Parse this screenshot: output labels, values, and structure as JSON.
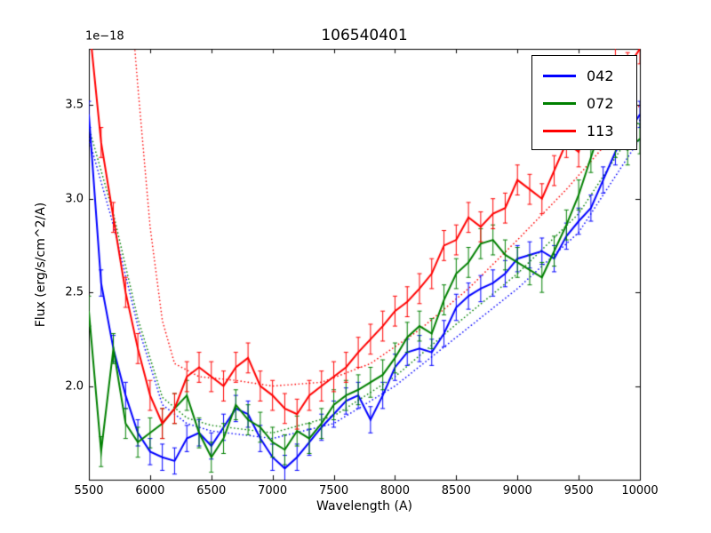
{
  "chart_data": {
    "type": "line",
    "title": "106540401",
    "xlabel": "Wavelength (A)",
    "ylabel": "Flux (erg/s/cm^2/A)",
    "offset_label": "1e−18",
    "xlim": [
      5500,
      10000
    ],
    "ylim": [
      1.5,
      3.8
    ],
    "xticks": [
      5500,
      6000,
      6500,
      7000,
      7500,
      8000,
      8500,
      9000,
      9500,
      10000
    ],
    "yticks": [
      2.0,
      2.5,
      3.0,
      3.5
    ],
    "grid": false,
    "legend_position": "upper right",
    "x": [
      5500,
      5600,
      5700,
      5800,
      5900,
      6000,
      6100,
      6200,
      6300,
      6400,
      6500,
      6600,
      6700,
      6800,
      6900,
      7000,
      7100,
      7200,
      7300,
      7400,
      7500,
      7600,
      7700,
      7800,
      7900,
      8000,
      8100,
      8200,
      8300,
      8400,
      8500,
      8600,
      8700,
      8800,
      8900,
      9000,
      9100,
      9200,
      9300,
      9400,
      9500,
      9600,
      9700,
      9800,
      9900,
      10000
    ],
    "series": [
      {
        "name": "042",
        "color": "#0000ff",
        "err": 0.07,
        "y": [
          3.45,
          2.55,
          2.2,
          1.95,
          1.75,
          1.65,
          1.62,
          1.6,
          1.72,
          1.75,
          1.68,
          1.78,
          1.88,
          1.85,
          1.72,
          1.62,
          1.56,
          1.62,
          1.7,
          1.78,
          1.85,
          1.92,
          1.95,
          1.82,
          1.95,
          2.1,
          2.18,
          2.2,
          2.18,
          2.28,
          2.42,
          2.48,
          2.52,
          2.55,
          2.6,
          2.68,
          2.7,
          2.72,
          2.68,
          2.8,
          2.88,
          2.95,
          3.1,
          3.25,
          3.35,
          3.45
        ]
      },
      {
        "name": "072",
        "color": "#008000",
        "err": 0.08,
        "y": [
          2.4,
          1.65,
          2.2,
          1.8,
          1.7,
          1.75,
          1.8,
          1.88,
          1.95,
          1.75,
          1.62,
          1.72,
          1.9,
          1.82,
          1.78,
          1.7,
          1.66,
          1.76,
          1.72,
          1.8,
          1.9,
          1.95,
          1.98,
          2.02,
          2.06,
          2.15,
          2.26,
          2.32,
          2.28,
          2.46,
          2.6,
          2.66,
          2.76,
          2.78,
          2.7,
          2.66,
          2.62,
          2.58,
          2.72,
          2.86,
          3.02,
          3.22,
          3.42,
          3.3,
          3.26,
          3.32
        ]
      },
      {
        "name": "113",
        "color": "#ff0000",
        "err": 0.08,
        "y": [
          3.95,
          3.3,
          2.9,
          2.5,
          2.2,
          1.95,
          1.8,
          1.88,
          2.05,
          2.1,
          2.05,
          2.0,
          2.1,
          2.15,
          2.0,
          1.95,
          1.88,
          1.85,
          1.95,
          2.0,
          2.05,
          2.1,
          2.18,
          2.25,
          2.32,
          2.4,
          2.45,
          2.52,
          2.6,
          2.75,
          2.78,
          2.9,
          2.85,
          2.92,
          2.95,
          3.1,
          3.05,
          3.0,
          3.15,
          3.3,
          3.25,
          3.5,
          3.55,
          3.75,
          3.7,
          3.8
        ]
      }
    ],
    "models": [
      {
        "name": "042-model",
        "color": "#0000ff",
        "x": [
          5500,
          5700,
          5900,
          6100,
          6300,
          6500,
          7000,
          7500,
          8000,
          8500,
          9000,
          9500,
          10000
        ],
        "y": [
          3.32,
          2.86,
          2.32,
          1.9,
          1.8,
          1.76,
          1.72,
          1.8,
          2.0,
          2.26,
          2.52,
          2.82,
          3.32
        ]
      },
      {
        "name": "072-model",
        "color": "#008000",
        "x": [
          5500,
          5700,
          5900,
          6100,
          6300,
          6500,
          7000,
          7500,
          8000,
          8500,
          9000,
          9500,
          10000
        ],
        "y": [
          3.38,
          2.92,
          2.36,
          1.94,
          1.83,
          1.79,
          1.75,
          1.84,
          2.05,
          2.33,
          2.6,
          2.92,
          3.42
        ]
      },
      {
        "name": "113-model",
        "color": "#ff0000",
        "x": [
          5600,
          5800,
          5900,
          6000,
          6100,
          6200,
          6400,
          6700,
          7000,
          7400,
          7800,
          8200,
          8600,
          9000,
          9400,
          9800,
          10000
        ],
        "y": [
          6.0,
          4.4,
          3.6,
          2.85,
          2.35,
          2.12,
          2.05,
          2.03,
          2.0,
          2.02,
          2.12,
          2.3,
          2.52,
          2.78,
          3.05,
          3.35,
          3.5
        ]
      }
    ],
    "legend_entries": [
      "042",
      "072",
      "113"
    ]
  }
}
